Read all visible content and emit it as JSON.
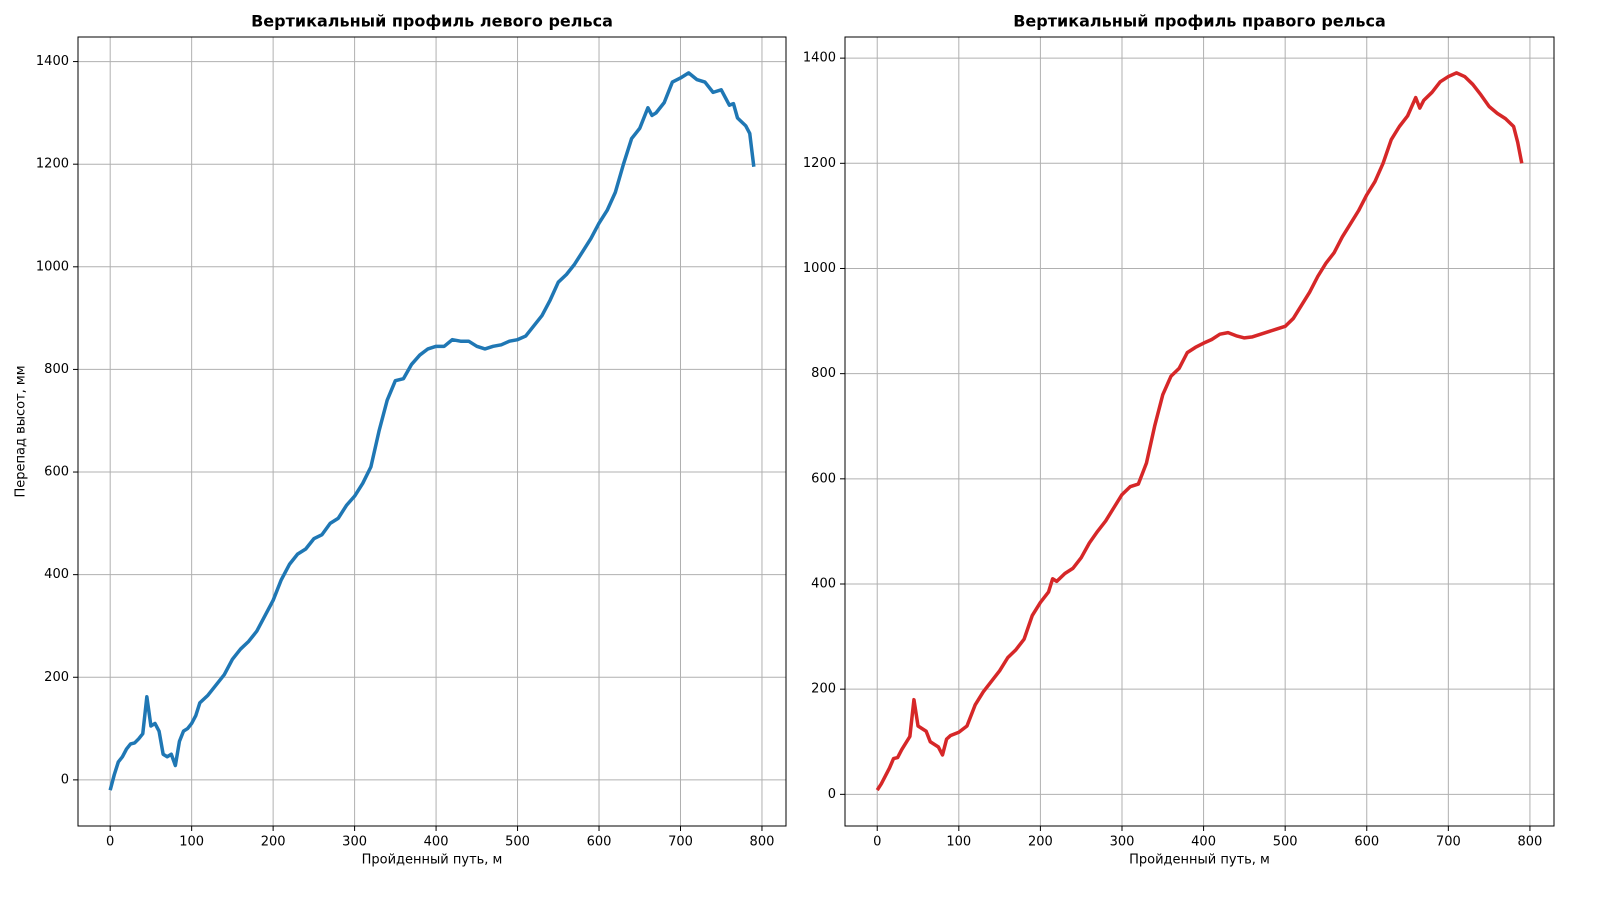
{
  "chart_data": [
    {
      "type": "line",
      "title": "Вертикальный профиль левого рельса",
      "x_label": "Пройденный путь, м",
      "y_label": "Перепад высот, мм",
      "x": [
        0,
        5,
        10,
        15,
        20,
        25,
        30,
        35,
        40,
        45,
        50,
        55,
        60,
        65,
        70,
        75,
        80,
        85,
        90,
        95,
        100,
        105,
        110,
        120,
        130,
        140,
        150,
        160,
        170,
        180,
        190,
        200,
        210,
        220,
        230,
        240,
        250,
        260,
        270,
        280,
        290,
        300,
        310,
        320,
        330,
        340,
        350,
        360,
        370,
        380,
        390,
        400,
        410,
        420,
        430,
        440,
        450,
        460,
        470,
        480,
        490,
        500,
        510,
        520,
        530,
        540,
        550,
        560,
        570,
        580,
        590,
        600,
        610,
        620,
        630,
        640,
        650,
        660,
        665,
        670,
        680,
        690,
        700,
        710,
        720,
        730,
        740,
        750,
        760,
        765,
        770,
        780,
        785,
        790
      ],
      "series": [
        {
          "name": "left",
          "color": "#1f77b4",
          "values": [
            -20,
            10,
            35,
            45,
            60,
            70,
            72,
            80,
            90,
            162,
            105,
            110,
            95,
            50,
            45,
            50,
            28,
            75,
            95,
            100,
            110,
            125,
            150,
            165,
            185,
            205,
            235,
            255,
            270,
            290,
            320,
            350,
            390,
            420,
            440,
            450,
            470,
            478,
            500,
            510,
            535,
            553,
            578,
            610,
            680,
            740,
            778,
            782,
            810,
            828,
            840,
            845,
            845,
            858,
            855,
            855,
            845,
            840,
            845,
            848,
            855,
            858,
            865,
            885,
            905,
            935,
            970,
            985,
            1005,
            1030,
            1055,
            1085,
            1110,
            1145,
            1200,
            1250,
            1270,
            1310,
            1295,
            1300,
            1320,
            1360,
            1368,
            1378,
            1365,
            1360,
            1340,
            1345,
            1315,
            1318,
            1290,
            1275,
            1260,
            1195
          ]
        }
      ],
      "xlim": [
        -39.5,
        829.5
      ],
      "ylim": [
        -89.9,
        1447.9
      ],
      "xticks": [
        0,
        100,
        200,
        300,
        400,
        500,
        600,
        700,
        800
      ],
      "yticks": [
        0,
        200,
        400,
        600,
        800,
        1000,
        1200,
        1400
      ],
      "grid": true
    },
    {
      "type": "line",
      "title": "Вертикальный профиль правого рельса",
      "x_label": "Пройденный путь, м",
      "x": [
        0,
        5,
        10,
        15,
        20,
        25,
        30,
        40,
        45,
        50,
        55,
        60,
        65,
        70,
        75,
        80,
        85,
        90,
        100,
        110,
        120,
        130,
        140,
        150,
        160,
        170,
        180,
        190,
        200,
        210,
        215,
        220,
        230,
        240,
        250,
        260,
        270,
        280,
        290,
        300,
        310,
        320,
        330,
        340,
        350,
        360,
        370,
        380,
        390,
        400,
        410,
        420,
        430,
        440,
        450,
        460,
        470,
        480,
        490,
        500,
        510,
        520,
        530,
        540,
        550,
        560,
        570,
        580,
        590,
        600,
        610,
        620,
        630,
        640,
        650,
        660,
        665,
        670,
        680,
        690,
        700,
        710,
        720,
        730,
        740,
        750,
        760,
        770,
        780,
        785,
        790
      ],
      "series": [
        {
          "name": "right",
          "color": "#d62728",
          "values": [
            8,
            20,
            35,
            50,
            68,
            70,
            85,
            110,
            180,
            130,
            125,
            120,
            100,
            95,
            90,
            75,
            105,
            112,
            118,
            130,
            170,
            195,
            215,
            235,
            260,
            275,
            295,
            340,
            365,
            385,
            410,
            405,
            420,
            430,
            450,
            478,
            500,
            520,
            545,
            570,
            585,
            590,
            630,
            700,
            760,
            795,
            810,
            840,
            850,
            858,
            865,
            875,
            878,
            872,
            868,
            870,
            875,
            880,
            885,
            890,
            905,
            930,
            955,
            985,
            1010,
            1030,
            1060,
            1085,
            1110,
            1140,
            1165,
            1200,
            1245,
            1270,
            1290,
            1325,
            1305,
            1320,
            1335,
            1355,
            1365,
            1372,
            1365,
            1350,
            1330,
            1308,
            1295,
            1285,
            1270,
            1240,
            1200
          ]
        }
      ],
      "xlim": [
        -39.5,
        829.5
      ],
      "ylim": [
        -60.2,
        1440.2
      ],
      "xticks": [
        0,
        100,
        200,
        300,
        400,
        500,
        600,
        700,
        800
      ],
      "yticks": [
        0,
        200,
        400,
        600,
        800,
        1000,
        1200,
        1400
      ],
      "grid": true
    }
  ]
}
